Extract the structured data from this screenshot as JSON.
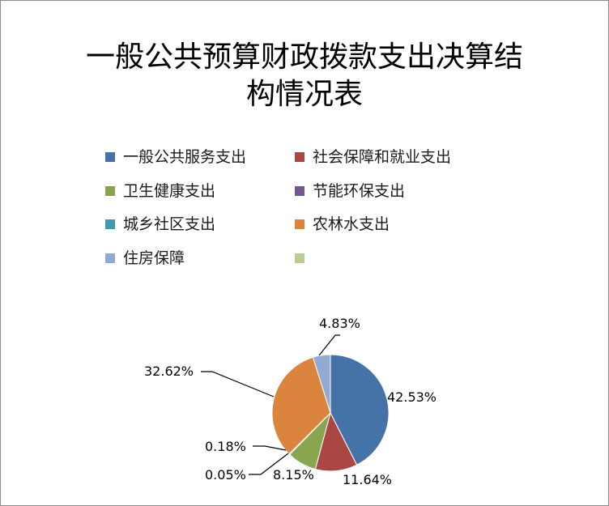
{
  "chart_data": {
    "type": "pie",
    "title_line1": "一般公共预算财政拨款支出决算结",
    "title_line2": "构情况表",
    "categories": [
      "一般公共服务支出",
      "社会保障和就业支出",
      "卫生健康支出",
      "节能环保支出",
      "城乡社区支出",
      "农林水支出",
      "住房保障",
      ""
    ],
    "values": [
      42.53,
      11.64,
      8.15,
      0.05,
      0.18,
      32.62,
      4.83,
      0
    ],
    "labels": [
      "42.53%",
      "11.64%",
      "8.15%",
      "0.05%",
      "0.18%",
      "32.62%",
      "4.83%"
    ],
    "colors": [
      "#4572a7",
      "#aa4643",
      "#89a54e",
      "#71588f",
      "#4198af",
      "#db843d",
      "#93a9cf",
      "#b9cd96"
    ],
    "legend_position": "top"
  }
}
